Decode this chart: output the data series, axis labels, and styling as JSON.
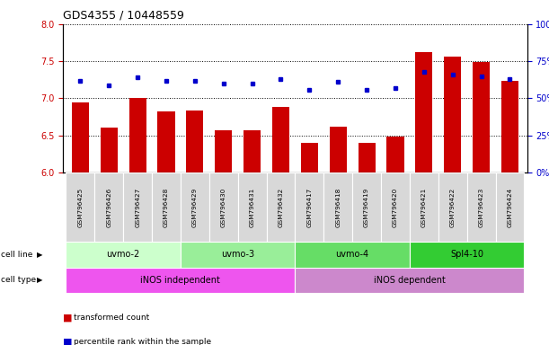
{
  "title": "GDS4355 / 10448559",
  "samples": [
    "GSM796425",
    "GSM796426",
    "GSM796427",
    "GSM796428",
    "GSM796429",
    "GSM796430",
    "GSM796431",
    "GSM796432",
    "GSM796417",
    "GSM796418",
    "GSM796419",
    "GSM796420",
    "GSM796421",
    "GSM796422",
    "GSM796423",
    "GSM796424"
  ],
  "red_values": [
    6.95,
    6.61,
    7.01,
    6.82,
    6.83,
    6.57,
    6.57,
    6.88,
    6.4,
    6.62,
    6.4,
    6.49,
    7.62,
    7.56,
    7.49,
    7.23
  ],
  "blue_values": [
    62,
    59,
    64,
    62,
    62,
    60,
    60,
    63,
    56,
    61,
    56,
    57,
    68,
    66,
    65,
    63
  ],
  "ylim_left": [
    6.0,
    8.0
  ],
  "ylim_right": [
    0,
    100
  ],
  "yticks_left": [
    6.0,
    6.5,
    7.0,
    7.5,
    8.0
  ],
  "yticks_right": [
    0,
    25,
    50,
    75,
    100
  ],
  "ytick_labels_right": [
    "0%",
    "25%",
    "50%",
    "75%",
    "100%"
  ],
  "cell_lines": [
    {
      "label": "uvmo-2",
      "start": 0,
      "end": 3,
      "color": "#ccffcc"
    },
    {
      "label": "uvmo-3",
      "start": 4,
      "end": 7,
      "color": "#99ee99"
    },
    {
      "label": "uvmo-4",
      "start": 8,
      "end": 11,
      "color": "#66dd66"
    },
    {
      "label": "Spl4-10",
      "start": 12,
      "end": 15,
      "color": "#33cc33"
    }
  ],
  "cell_types": [
    {
      "label": "iNOS independent",
      "start": 0,
      "end": 7,
      "color": "#ee55ee"
    },
    {
      "label": "iNOS dependent",
      "start": 8,
      "end": 15,
      "color": "#cc88cc"
    }
  ],
  "bar_color": "#cc0000",
  "dot_color": "#0000cc",
  "legend_red": "transformed count",
  "legend_blue": "percentile rank within the sample",
  "cell_line_label": "cell line",
  "cell_type_label": "cell type"
}
